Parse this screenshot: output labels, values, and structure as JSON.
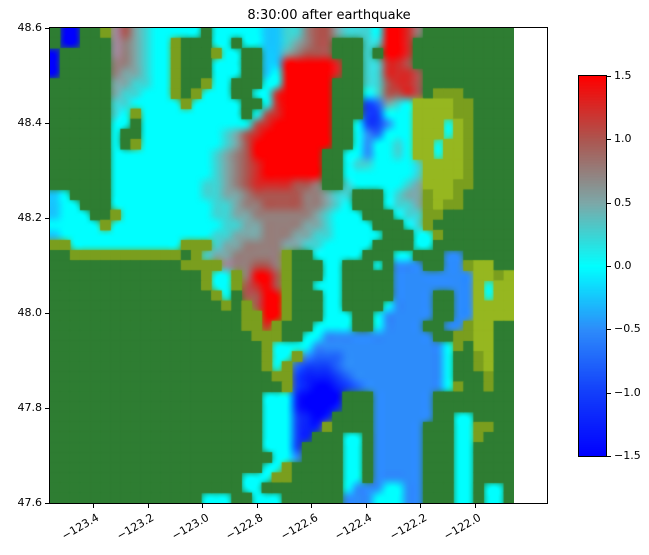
{
  "chart": {
    "title": "8:30:00 after earthquake"
  },
  "chart_data": {
    "type": "heatmap",
    "title": "8:30:00 after earthquake",
    "description": "Tsunami sea-surface amplitude map of the Puget Sound / Salish Sea region at 8:30:00 after earthquake; green = land, colors = wave amplitude",
    "grid_on": false,
    "x_axis": {
      "lim": [
        -123.558,
        -121.736
      ],
      "tick_values": [
        -123.4,
        -123.2,
        -123.0,
        -122.8,
        -122.6,
        -122.4,
        -122.2,
        -122.0
      ],
      "tick_labels": [
        "−123.4",
        "−123.2",
        "−123.0",
        "−122.8",
        "−122.6",
        "−122.4",
        "−122.2",
        "−122.0"
      ],
      "tick_rotation_deg": 30
    },
    "y_axis": {
      "lim": [
        47.6,
        48.6
      ],
      "tick_values": [
        48.6,
        48.4,
        48.2,
        48.0,
        47.8,
        47.6
      ],
      "tick_labels": [
        "48.6",
        "48.4",
        "48.2",
        "48.0",
        "47.8",
        "47.6"
      ]
    },
    "colorbar": {
      "min": -1.5,
      "max": 1.5,
      "tick_values": [
        1.5,
        1.0,
        0.5,
        0.0,
        -0.5,
        -1.0,
        -1.5
      ],
      "tick_labels": [
        "1.5",
        "1.0",
        "0.5",
        "0.0",
        "−0.5",
        "−1.0",
        "−1.5"
      ],
      "stops": [
        {
          "v": -1.5,
          "c": [
            0,
            0,
            255
          ]
        },
        {
          "v": -1.0,
          "c": [
            18,
            62,
            250
          ]
        },
        {
          "v": -0.5,
          "c": [
            45,
            140,
            250
          ]
        },
        {
          "v": 0.0,
          "c": [
            0,
            255,
            255
          ]
        },
        {
          "v": 0.5,
          "c": [
            125,
            168,
            168
          ]
        },
        {
          "v": 1.0,
          "c": [
            172,
            86,
            80
          ]
        },
        {
          "v": 1.5,
          "c": [
            255,
            0,
            0
          ]
        }
      ]
    },
    "map_grid": {
      "cols": 46,
      "rows": 47,
      "lon_range": [
        -123.558,
        -121.857
      ],
      "lat_range": [
        47.6,
        48.6
      ],
      "value_codes": {
        "0": 0.0,
        "1": 0.25,
        "2": 0.5,
        "3": 0.75,
        "4": 1.0,
        "5": 1.25,
        "6": 1.5,
        "a": -0.25,
        "b": -0.5,
        "c": -0.75,
        "d": -1.0,
        "e": -1.25,
        "f": -1.5
      },
      "land_colors": {
        "G": "#2e7d32",
        "O": "#7a9e1e",
        "Y": "#96b720"
      },
      "special_colors": {
        "g": "#a08a9d"
      },
      "cells": [
        "GffGGOg42100000G00000aa11344211106653GGGGGGGGG",
        "GffGGGg32100OGGG00G00aa12344GGG11665GGGGGGGGGG",
        "fGGGGGg32100OGGGO00GGaa23444GGG1G665GGGGGGGGGG",
        "fGGGGG332100OGGG000GGaa666665GG11554GGGGGGGGGG",
        "fGGGGG322100OGGG000GGa0666665GG115554GGGGGGGGG",
        "GGGGGG221100OGGO00GGG0066666GGG114554GGGGGGGGG",
        "GGGGGG211000OGO000GG00566666GGG014454GOOOGGGGG",
        "GGGGGG1100000O00000GG0566666GGGdc210YYYYOOGGGG",
        "GGGGGG10O0000000000G04566666GGGdd000YYYYOOGGGG",
        "GGGGGG00G0000000000045666666GG0ddb00YYY0YOGGGG",
        "GGGGGG0GG0000000012456666666GG0bc000YYY0YOGGGG",
        "GGGGGG0GO0000000012466666666GG0b0010YY0YYOGGGG",
        "GGGGGG000000000012346666666GG00b0010YY0YYOGGGG",
        "GGGGGG000000000012345666666GG01100001YYYYOGGGG",
        "GGGGGG000000000012345666666GG00000001YYYYOGGGG",
        "GGGGGG000000000112345555443GG10000012YYYOOGGGG",
        "a0GGGG000000000112234444433211GGG0122OYYOGGGGG",
        "a00GGG000000000011233444433210GGG0112OYOOGGGGG",
        "a000GGO000000000112233333321000GGG011OOGGGGGGG",
        "00000O00000000000112233332210000GGG01OGGGGGGGG",
        "a000000000000000112223332211000 0GGG00OGGGGGGGG",
        "OO00000000000OOO12233332211000 0GGGG00GGGGGGGGG",
        "GGOOOOOOOOOOOGO12233333OGG00000GGG00GGGbbGGGGG",
        "GGGGGGGGGGGGGOOOOg33443OGGG00GGG0GbbbGGbbOYYGG",
        "GGGGGGGGGGGGGGGO00O3664OGGG00GGGGGbbbbbbbbYYOY",
        "GGGGGGGGGGGGGGGO00O4564OGG000GGGGGbbbbbbbbY0YY",
        "GGGGGGGGGGGGGGGGO0G4466OGGG00GGGGGbbbbGGbbY0YY",
        "GGGGGGGGGGGGGGGGGOGO466OGGG00GGGG0bbbbGGbbYYYY",
        "GGGGGGGGGGGGGGGGGGGOO66OGGG000GG0bbbbbGGbbYYYY",
        "GGGGGGGGGGGGGGGGGGGOO5OGGG0000GG0bbbbGGbbOYYGG",
        "GGGGGGGGGGGGGGGGGGGGOOOGG00bbbbbbbbbbbGGOOYYGG",
        "GGGGGGGGGGGGGGGGGGGGGO0000bbbbbbbbbbbbb0OGYYGG",
        "GGGGGGGGGGGGGGGGGGGGGO00Obcccbbbbbbbbbb0GGOYGG",
        "GGGGGGGGGGGGGGGGGGGGGO0Ocdddcbbbbbbbbbb0GGOYGG",
        "GGGGGGGGGGGGGGGGGGGGGGOOdeeedcbbbbbbbbb0GGGOGG",
        "GGGGGGGGGGGGGGGGGGGGGGGOdeffedcbbbbbbbb0OGGOGG",
        "GGGGGGGGGGGGGGGGGGGGG000effffGGGbbbbbbGGGGGGGG",
        "GGGGGGGGGGGGGGGGGGGGG000efffeGGGbbbbbbGGGGGGGG",
        "GGGGGGGGGGGGGGGGGGGGG000defeGGGGbbbbbbGG00GGGG",
        "GGGGGGGGGGGGGGGGGGGGG000deeOGGGGbbbbbGGG00OOGG",
        "GGGGGGGGGGGGGGGGGGGGG000deGGG00GbbbbbGGG00OGGG",
        "GGGGGGGGGGGGGGGGGGGGG000dGGGG00GbbbbbGGG00GGGG",
        "GGGGGGGGGGGGGGGGGGGGGG00bGGGG00GbbbbbGGG00GGGG",
        "GGGGGGGGGGGGGGGGGGGGG00OGGGGG00GbbbbbGGG00GGGG",
        "GGGGGGGGGGGGGGGGGGG000OOGGGGG00GbbbbbGGG00GGGG",
        "GGGGGGGGGGGGGGGGGGG00GGGGGGGG0bbb00bbGGG00G00G",
        "GGGGGGGGGGGGGGG000GG000GGGGGGbbb000bbGGG00G00G"
      ]
    }
  }
}
